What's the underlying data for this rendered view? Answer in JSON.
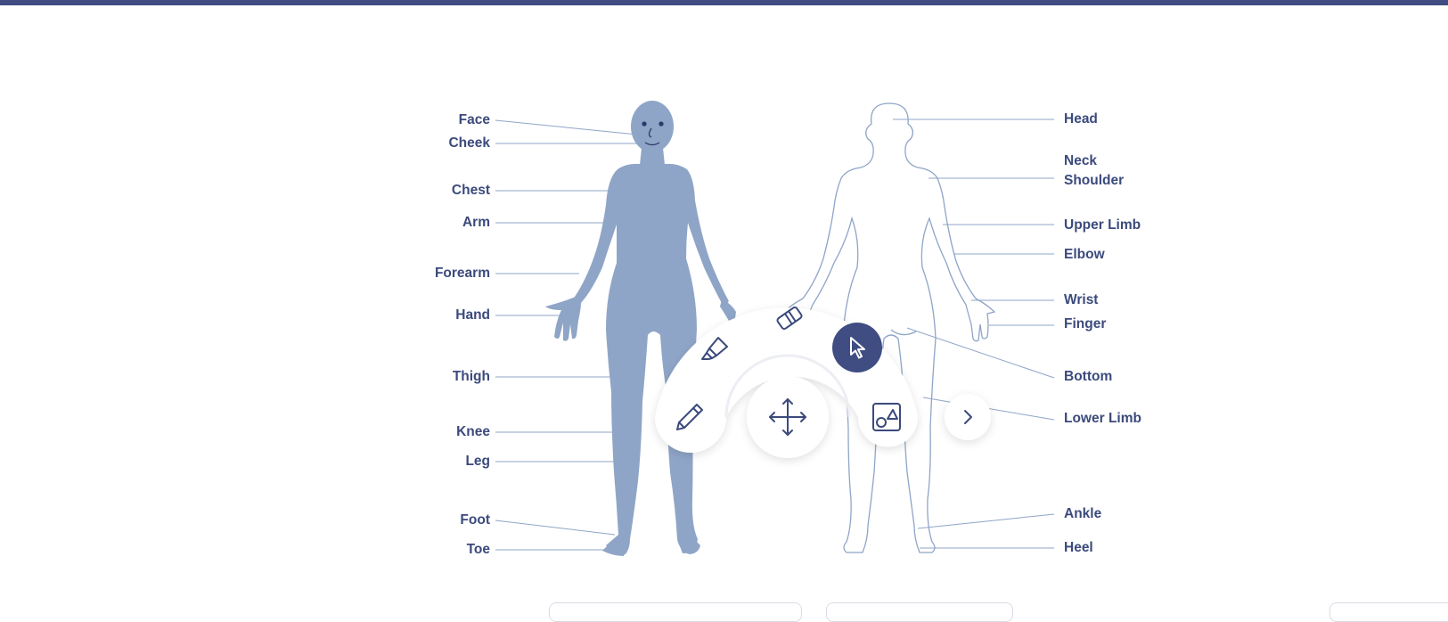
{
  "labels_left": {
    "face": "Face",
    "cheek": "Cheek",
    "chest": "Chest",
    "arm": "Arm",
    "forearm": "Forearm",
    "hand": "Hand",
    "thigh": "Thigh",
    "knee": "Knee",
    "leg": "Leg",
    "foot": "Foot",
    "toe": "Toe"
  },
  "labels_right": {
    "head": "Head",
    "neck": "Neck",
    "shoulder": "Shoulder",
    "upper_limb": "Upper Limb",
    "elbow": "Elbow",
    "wrist": "Wrist",
    "finger": "Finger",
    "bottom": "Bottom",
    "lower_limb": "Lower Limb",
    "ankle": "Ankle",
    "heel": "Heel"
  },
  "toolbar": {
    "tools": [
      "highlighter-icon",
      "eraser-icon",
      "cursor-icon",
      "pencil-icon",
      "move-icon",
      "shapes-icon",
      "chevron-right-icon"
    ],
    "active_tool": "cursor"
  },
  "colors": {
    "accent": "#3f4d82",
    "body_fill": "#8fa5c7",
    "outline": "#8fa5c7",
    "label": "#3b4a7c"
  }
}
